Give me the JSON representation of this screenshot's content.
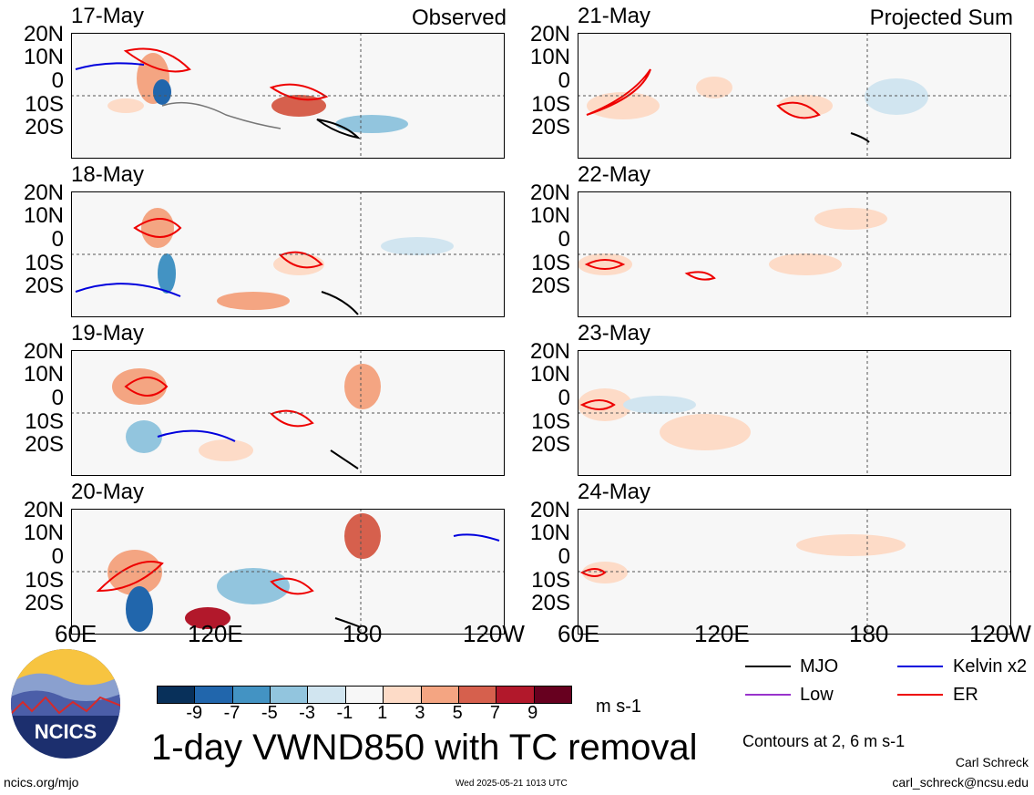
{
  "panels_left": [
    {
      "date": "17-May",
      "tag": "Observed"
    },
    {
      "date": "18-May",
      "tag": ""
    },
    {
      "date": "19-May",
      "tag": ""
    },
    {
      "date": "20-May",
      "tag": ""
    }
  ],
  "panels_right": [
    {
      "date": "21-May",
      "tag": "Projected Sum"
    },
    {
      "date": "22-May",
      "tag": ""
    },
    {
      "date": "23-May",
      "tag": ""
    },
    {
      "date": "24-May",
      "tag": ""
    }
  ],
  "lat_labels": [
    "20N",
    "10N",
    "0",
    "10S",
    "20S"
  ],
  "lon_labels": [
    "60E",
    "120E",
    "180",
    "120W"
  ],
  "colorbar": {
    "ticks": [
      "-9",
      "-7",
      "-5",
      "-3",
      "-1",
      "1",
      "3",
      "5",
      "7",
      "9"
    ],
    "colors": [
      "#08305a",
      "#2166ac",
      "#4393c3",
      "#92c5de",
      "#d1e5f0",
      "#f7f7f7",
      "#fddbc7",
      "#f4a582",
      "#d6604d",
      "#b2182b",
      "#67001f"
    ],
    "units": "m s-1"
  },
  "title": "1-day VWND850 with TC removal",
  "legend": {
    "items": [
      {
        "label": "MJO",
        "color": "#000000"
      },
      {
        "label": "Kelvin x2",
        "color": "#0000dd"
      },
      {
        "label": "Low",
        "color": "#9933cc"
      },
      {
        "label": "ER",
        "color": "#ee0000"
      }
    ],
    "contours_note": "Contours at 2, 6 m s-1"
  },
  "logo": {
    "text": "NCICS"
  },
  "footer": {
    "left": "ncics.org/mjo",
    "center": "Wed 2025-05-21 1013 UTC",
    "author": "Carl Schreck",
    "email": "carl_schreck@ncsu.edu"
  }
}
